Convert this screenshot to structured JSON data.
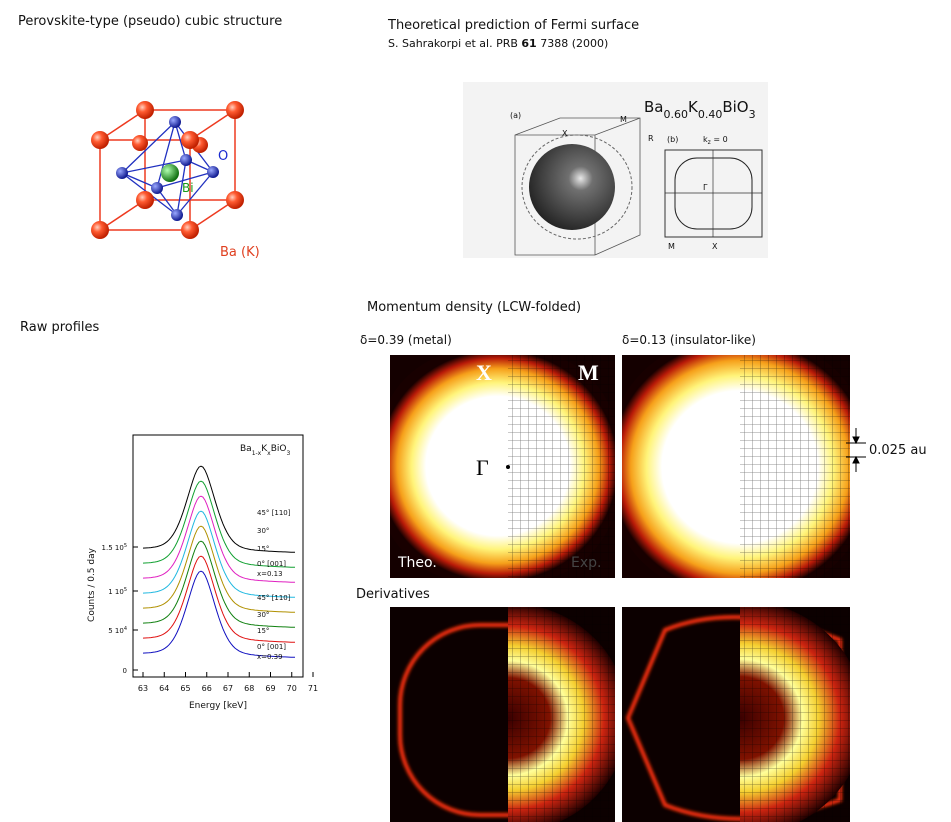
{
  "structure": {
    "title": "Perovskite-type (pseudo) cubic structure",
    "labels": {
      "o": "O",
      "bi": "Bi",
      "ba": "Ba (K)"
    }
  },
  "fermi": {
    "title": "Theoretical prediction of Fermi surface",
    "citation": [
      "S. Sahrakorpi et al. PRB ",
      "61",
      " 7388 (2000)"
    ],
    "figure": {
      "formula": [
        "Ba",
        "0.60",
        "K",
        "0.40",
        "BiO",
        "3"
      ],
      "panel_a": "(a)",
      "panel_b": "(b)",
      "x": "X",
      "m": "M",
      "r": "R",
      "kz": "k",
      "kz_sub": "z",
      "kz_eq": " = 0",
      "gamma": "Γ",
      "m2": "M",
      "x2": "X"
    }
  },
  "raw_profiles": {
    "title": "Raw profiles",
    "plot": {
      "formula": [
        "Ba",
        "1-x",
        "K",
        "x",
        "BiO",
        "3"
      ],
      "ylabel": "Counts / 0.5 day",
      "xlabel": "Energy [keV]",
      "xticks": [
        "63",
        "64",
        "65",
        "66",
        "67",
        "68",
        "69",
        "70",
        "71"
      ],
      "yticks": [
        {
          "text": "0"
        },
        {
          "text": "5 10",
          "exp": "4"
        },
        {
          "text": "1 10",
          "exp": "5"
        },
        {
          "text": "1.5 10",
          "exp": "5"
        }
      ],
      "curve_labels": [
        "45° [110]",
        "30°",
        "15°",
        "0° [001]",
        "x=0.13",
        "45° [110]",
        "30°",
        "15°",
        "0° [001]",
        "x=0.39"
      ]
    }
  },
  "momentum": {
    "title": "Momentum density  (LCW-folded)",
    "metal": "δ=0.39 (metal)",
    "insulator": "δ=0.13 (insulator-like)",
    "x": "X",
    "m": "M",
    "gamma": "Γ",
    "theo": "Theo.",
    "exp": "Exp.",
    "scale": "0.025 au"
  },
  "derivatives": {
    "title": "Derivatives"
  }
}
